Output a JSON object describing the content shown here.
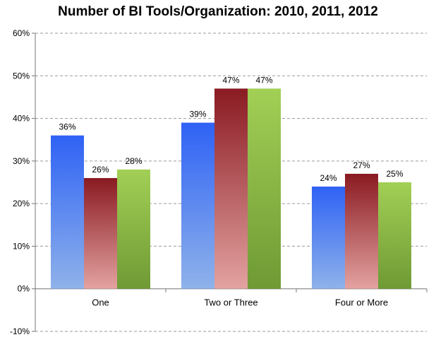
{
  "chart_data": {
    "type": "bar",
    "title": "Number of BI Tools/Organization: 2010,  2011, 2012",
    "xlabel": "",
    "ylabel": "",
    "ylim": [
      -10,
      60
    ],
    "yticks": [
      -10,
      0,
      10,
      20,
      30,
      40,
      50,
      60
    ],
    "ytick_labels": [
      "-10%",
      "0%",
      "10%",
      "20%",
      "30%",
      "40%",
      "50%",
      "60%"
    ],
    "grid": true,
    "categories": [
      "One",
      "Two or Three",
      "Four or More"
    ],
    "series": [
      {
        "name": "2010",
        "values": [
          36,
          39,
          24
        ],
        "labels": [
          "36%",
          "39%",
          "24%"
        ],
        "color_top": "#2f62f5",
        "color_bottom": "#8fb2ea"
      },
      {
        "name": "2011",
        "values": [
          26,
          47,
          27
        ],
        "labels": [
          "26%",
          "47%",
          "27%"
        ],
        "color_top": "#8a1a22",
        "color_bottom": "#e3a2a0"
      },
      {
        "name": "2012",
        "values": [
          28,
          47,
          25
        ],
        "labels": [
          "28%",
          "47%",
          "25%"
        ],
        "color_top": "#a2cf55",
        "color_bottom": "#6f9a35"
      }
    ]
  }
}
